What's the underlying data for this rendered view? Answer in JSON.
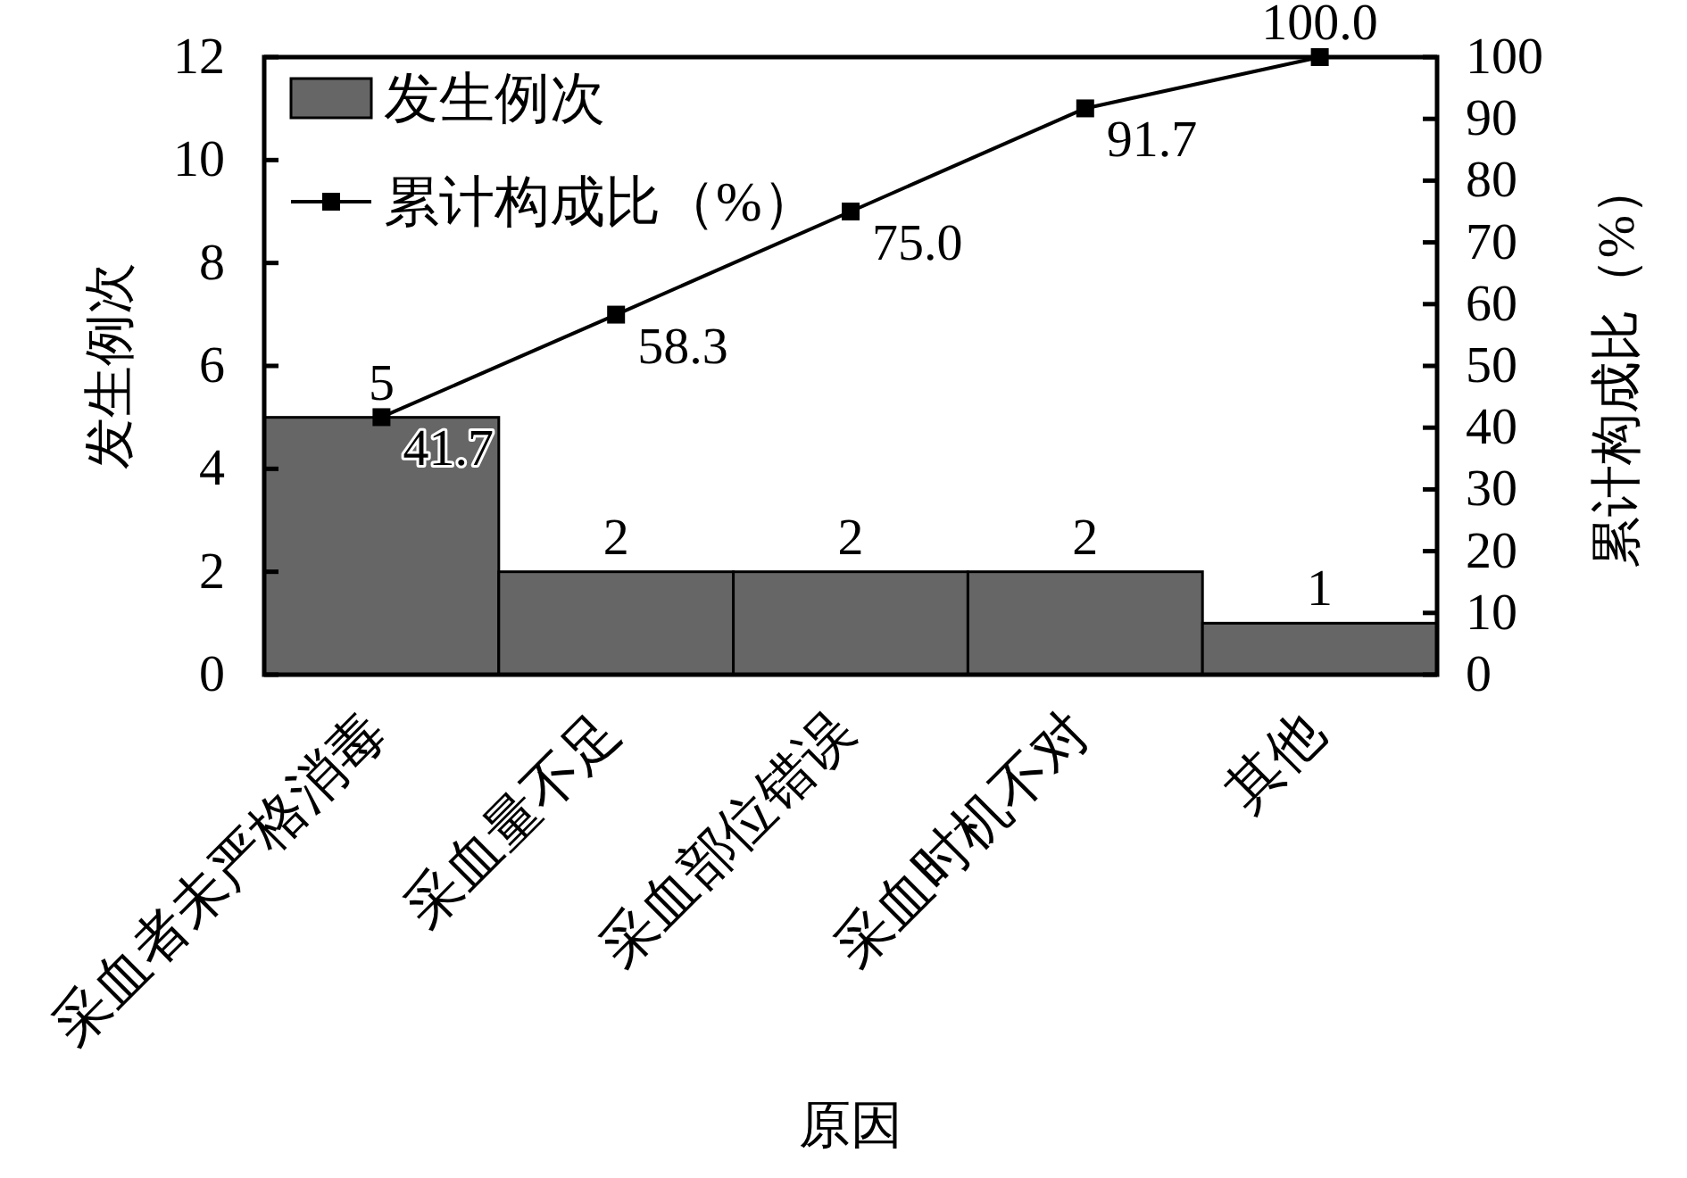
{
  "chart_data": {
    "type": "bar",
    "xlabel": "原因",
    "ylabel": "发生例次",
    "y2label": "累计构成比（%）",
    "categories": [
      "采血者未严格消毒",
      "采血量不足",
      "采血部位错误",
      "采血时机不对",
      "其他"
    ],
    "series": [
      {
        "name": "发生例次",
        "type": "bar",
        "color": "#666666",
        "values": [
          5,
          2,
          2,
          2,
          1
        ],
        "value_labels": [
          "5",
          "2",
          "2",
          "2",
          "1"
        ]
      },
      {
        "name": "累计构成比（%）",
        "type": "line",
        "axis": "y2",
        "color": "#000000",
        "values": [
          41.7,
          58.3,
          75.0,
          91.7,
          100.0
        ],
        "value_labels": [
          "41.7",
          "58.3",
          "75.0",
          "91.7",
          "100.0"
        ]
      }
    ],
    "ylim": [
      0,
      12
    ],
    "yticks": [
      0,
      2,
      4,
      6,
      8,
      10,
      12
    ],
    "y2lim": [
      0,
      100
    ],
    "y2ticks": [
      0,
      10,
      20,
      30,
      40,
      50,
      60,
      70,
      80,
      90,
      100
    ],
    "legend": "top left",
    "marker": "square",
    "line_style": "solid"
  }
}
